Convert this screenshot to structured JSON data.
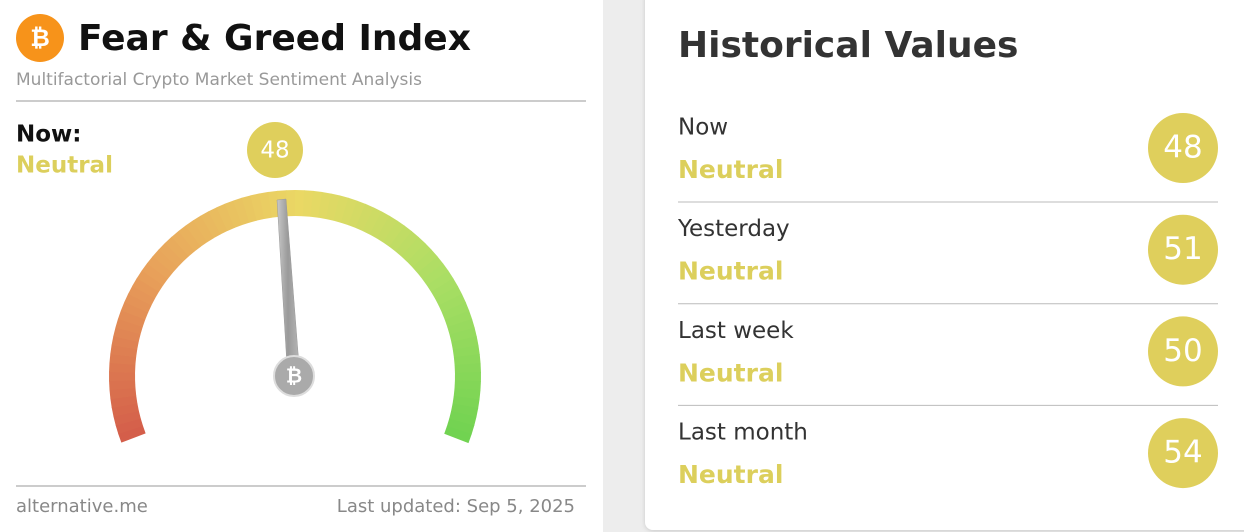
{
  "header": {
    "title": "Fear & Greed Index",
    "subtitle": "Multifactorial Crypto Market Sentiment Analysis"
  },
  "now": {
    "label": "Now:",
    "status": "Neutral",
    "value": 48
  },
  "footer": {
    "source": "alternative.me",
    "updated": "Last updated: Sep 5, 2025"
  },
  "history": {
    "title": "Historical Values",
    "rows": [
      {
        "label": "Now",
        "status": "Neutral",
        "value": 48
      },
      {
        "label": "Yesterday",
        "status": "Neutral",
        "value": 51
      },
      {
        "label": "Last week",
        "status": "Neutral",
        "value": 50
      },
      {
        "label": "Last month",
        "status": "Neutral",
        "value": 54
      }
    ]
  }
}
